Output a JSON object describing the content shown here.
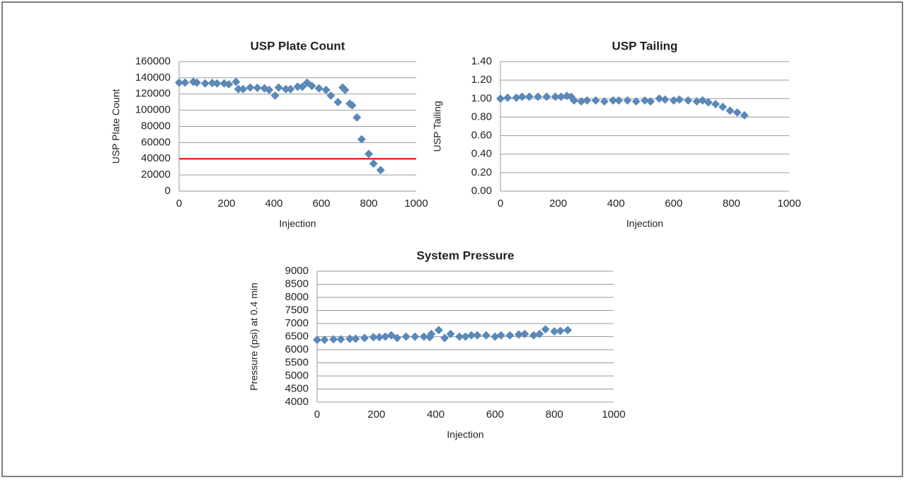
{
  "chart_data": [
    {
      "type": "scatter",
      "title": "USP Plate Count",
      "x_label": "Injection",
      "y_label": "USP Plate Count",
      "color": "#5a88b8",
      "grid": true,
      "xlim": [
        0,
        1000
      ],
      "xticks": [
        0,
        200,
        400,
        600,
        800,
        1000
      ],
      "ylim": [
        0,
        160000
      ],
      "yticks": [
        0,
        20000,
        40000,
        60000,
        80000,
        100000,
        120000,
        140000,
        160000
      ],
      "reference_line": {
        "value": 40000,
        "color": "#e0302a"
      },
      "x": [
        0,
        25,
        60,
        75,
        110,
        140,
        160,
        190,
        210,
        240,
        250,
        270,
        300,
        330,
        360,
        380,
        405,
        420,
        450,
        470,
        500,
        520,
        540,
        560,
        590,
        620,
        640,
        670,
        690,
        700,
        720,
        730,
        750,
        770,
        800,
        820,
        850
      ],
      "values": [
        134000,
        134000,
        135000,
        134000,
        133000,
        133500,
        133000,
        133000,
        132000,
        135000,
        126000,
        126000,
        128000,
        127500,
        127000,
        125000,
        118000,
        128000,
        126000,
        126000,
        129000,
        129000,
        134000,
        130000,
        127000,
        125000,
        118000,
        110000,
        128000,
        125000,
        108000,
        106000,
        91000,
        64000,
        46000,
        34000,
        26000
      ]
    },
    {
      "type": "scatter",
      "title": "USP Tailing",
      "x_label": "Injection",
      "y_label": "USP Tailing",
      "color": "#5a88b8",
      "grid": true,
      "xlim": [
        0,
        1000
      ],
      "xticks": [
        0,
        200,
        400,
        600,
        800,
        1000
      ],
      "ylim": [
        0,
        1.4
      ],
      "yticks": [
        {
          "value": 0,
          "label": "0.00"
        },
        {
          "value": 0.2,
          "label": "0.20"
        },
        {
          "value": 0.4,
          "label": "0.40"
        },
        {
          "value": 0.6,
          "label": "0.60"
        },
        {
          "value": 0.8,
          "label": "0.80"
        },
        {
          "value": 1,
          "label": "1.00"
        },
        {
          "value": 1.2,
          "label": "1.20"
        },
        {
          "value": 1.4,
          "label": "1.40"
        }
      ],
      "x": [
        0,
        25,
        55,
        75,
        100,
        130,
        160,
        190,
        210,
        230,
        245,
        255,
        280,
        300,
        330,
        360,
        390,
        410,
        440,
        470,
        500,
        520,
        550,
        570,
        600,
        620,
        650,
        680,
        700,
        720,
        745,
        770,
        795,
        820,
        845
      ],
      "values": [
        1.0,
        1.01,
        1.01,
        1.02,
        1.02,
        1.02,
        1.02,
        1.02,
        1.02,
        1.03,
        1.02,
        0.98,
        0.97,
        0.98,
        0.98,
        0.97,
        0.98,
        0.98,
        0.98,
        0.97,
        0.98,
        0.97,
        1.0,
        0.99,
        0.98,
        0.99,
        0.98,
        0.97,
        0.98,
        0.96,
        0.94,
        0.91,
        0.87,
        0.85,
        0.82
      ]
    },
    {
      "type": "scatter",
      "title": "System Pressure",
      "x_label": "Injection",
      "y_label": "Pressure (psi) at 0.4 min",
      "color": "#5a88b8",
      "grid": true,
      "xlim": [
        0,
        1000
      ],
      "xticks": [
        0,
        200,
        400,
        600,
        800,
        1000
      ],
      "ylim": [
        4000,
        9000
      ],
      "yticks": [
        4000,
        4500,
        5000,
        5500,
        6000,
        6500,
        7000,
        7500,
        8000,
        8500,
        9000
      ],
      "x": [
        0,
        25,
        55,
        80,
        110,
        130,
        160,
        190,
        210,
        230,
        250,
        270,
        300,
        330,
        360,
        380,
        385,
        410,
        430,
        450,
        480,
        500,
        520,
        540,
        570,
        600,
        620,
        650,
        680,
        700,
        730,
        750,
        770,
        800,
        820,
        845
      ],
      "values": [
        6380,
        6380,
        6400,
        6400,
        6420,
        6420,
        6450,
        6480,
        6480,
        6500,
        6550,
        6450,
        6500,
        6500,
        6500,
        6480,
        6600,
        6750,
        6450,
        6600,
        6500,
        6500,
        6550,
        6550,
        6550,
        6500,
        6550,
        6550,
        6580,
        6600,
        6550,
        6600,
        6780,
        6700,
        6720,
        6750
      ]
    }
  ]
}
